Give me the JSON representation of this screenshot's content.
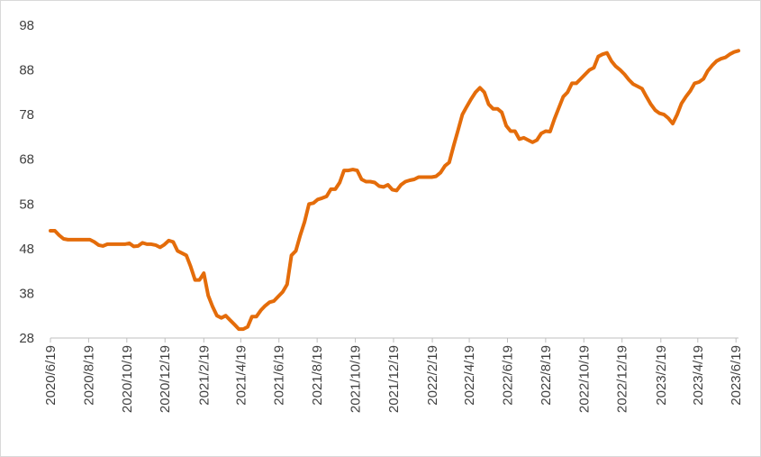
{
  "chart_data": {
    "type": "line",
    "title": "",
    "xlabel": "",
    "ylabel": "",
    "ylim": [
      28,
      98
    ],
    "yticks": [
      28,
      38,
      48,
      58,
      68,
      78,
      88,
      98
    ],
    "xticks": [
      "2020/6/19",
      "2020/8/19",
      "2020/10/19",
      "2020/12/19",
      "2021/2/19",
      "2021/4/19",
      "2021/6/19",
      "2021/8/19",
      "2021/10/19",
      "2021/12/19",
      "2022/2/19",
      "2022/4/19",
      "2022/6/19",
      "2022/8/19",
      "2022/10/19",
      "2022/12/19",
      "2023/2/19",
      "2023/4/19",
      "2023/6/19"
    ],
    "grid": false,
    "legend": "none",
    "series": [
      {
        "color": "#E46C0A",
        "points": [
          [
            "2020/6/19",
            52
          ],
          [
            "2020/6/26",
            52
          ],
          [
            "2020/7/3",
            51
          ],
          [
            "2020/7/10",
            50.2
          ],
          [
            "2020/7/17",
            50
          ],
          [
            "2020/7/24",
            50
          ],
          [
            "2020/7/31",
            50
          ],
          [
            "2020/8/7",
            50
          ],
          [
            "2020/8/14",
            50
          ],
          [
            "2020/8/21",
            50
          ],
          [
            "2020/8/28",
            49.5
          ],
          [
            "2020/9/4",
            48.8
          ],
          [
            "2020/9/11",
            48.6
          ],
          [
            "2020/9/18",
            49
          ],
          [
            "2020/9/25",
            49
          ],
          [
            "2020/10/2",
            49
          ],
          [
            "2020/10/9",
            49
          ],
          [
            "2020/10/16",
            49
          ],
          [
            "2020/10/23",
            49.2
          ],
          [
            "2020/10/30",
            48.5
          ],
          [
            "2020/11/6",
            48.6
          ],
          [
            "2020/11/13",
            49.3
          ],
          [
            "2020/11/20",
            49
          ],
          [
            "2020/11/27",
            49
          ],
          [
            "2020/12/4",
            48.8
          ],
          [
            "2020/12/11",
            48.3
          ],
          [
            "2020/12/18",
            48.9
          ],
          [
            "2020/12/25",
            49.8
          ],
          [
            "2021/1/1",
            49.5
          ],
          [
            "2021/1/8",
            47.5
          ],
          [
            "2021/1/15",
            47
          ],
          [
            "2021/1/22",
            46.5
          ],
          [
            "2021/1/29",
            44
          ],
          [
            "2021/2/5",
            41
          ],
          [
            "2021/2/12",
            41
          ],
          [
            "2021/2/19",
            42.5
          ],
          [
            "2021/2/26",
            37.5
          ],
          [
            "2021/3/5",
            35
          ],
          [
            "2021/3/12",
            33
          ],
          [
            "2021/3/19",
            32.5
          ],
          [
            "2021/3/26",
            33
          ],
          [
            "2021/4/2",
            32
          ],
          [
            "2021/4/9",
            31
          ],
          [
            "2021/4/16",
            30
          ],
          [
            "2021/4/23",
            30
          ],
          [
            "2021/4/30",
            30.5
          ],
          [
            "2021/5/7",
            32.8
          ],
          [
            "2021/5/14",
            32.8
          ],
          [
            "2021/5/21",
            34.2
          ],
          [
            "2021/5/28",
            35.2
          ],
          [
            "2021/6/4",
            36
          ],
          [
            "2021/6/11",
            36.3
          ],
          [
            "2021/6/18",
            37.3
          ],
          [
            "2021/6/25",
            38.3
          ],
          [
            "2021/7/2",
            40
          ],
          [
            "2021/7/9",
            46.5
          ],
          [
            "2021/7/16",
            47.5
          ],
          [
            "2021/7/23",
            51
          ],
          [
            "2021/7/30",
            54
          ],
          [
            "2021/8/6",
            58
          ],
          [
            "2021/8/13",
            58.2
          ],
          [
            "2021/8/20",
            59
          ],
          [
            "2021/8/27",
            59.3
          ],
          [
            "2021/9/3",
            59.7
          ],
          [
            "2021/9/10",
            61.3
          ],
          [
            "2021/9/17",
            61.3
          ],
          [
            "2021/9/24",
            62.8
          ],
          [
            "2021/10/1",
            65.5
          ],
          [
            "2021/10/8",
            65.5
          ],
          [
            "2021/10/15",
            65.7
          ],
          [
            "2021/10/22",
            65.5
          ],
          [
            "2021/10/29",
            63.5
          ],
          [
            "2021/11/5",
            63
          ],
          [
            "2021/11/12",
            63
          ],
          [
            "2021/11/19",
            62.8
          ],
          [
            "2021/11/26",
            62
          ],
          [
            "2021/12/3",
            61.8
          ],
          [
            "2021/12/10",
            62.3
          ],
          [
            "2021/12/17",
            61.2
          ],
          [
            "2021/12/24",
            61
          ],
          [
            "2021/12/31",
            62.3
          ],
          [
            "2022/1/7",
            63
          ],
          [
            "2022/1/14",
            63.3
          ],
          [
            "2022/1/21",
            63.5
          ],
          [
            "2022/1/28",
            64
          ],
          [
            "2022/2/4",
            64
          ],
          [
            "2022/2/11",
            64
          ],
          [
            "2022/2/18",
            64
          ],
          [
            "2022/2/25",
            64.2
          ],
          [
            "2022/3/4",
            65
          ],
          [
            "2022/3/11",
            66.5
          ],
          [
            "2022/3/18",
            67.3
          ],
          [
            "2022/3/25",
            71
          ],
          [
            "2022/4/1",
            74.5
          ],
          [
            "2022/4/8",
            78
          ],
          [
            "2022/4/15",
            79.8
          ],
          [
            "2022/4/22",
            81.5
          ],
          [
            "2022/4/29",
            83
          ],
          [
            "2022/5/6",
            84
          ],
          [
            "2022/5/13",
            83
          ],
          [
            "2022/5/20",
            80.3
          ],
          [
            "2022/5/27",
            79.3
          ],
          [
            "2022/6/3",
            79.3
          ],
          [
            "2022/6/10",
            78.5
          ],
          [
            "2022/6/17",
            75.5
          ],
          [
            "2022/6/24",
            74.3
          ],
          [
            "2022/7/1",
            74.3
          ],
          [
            "2022/7/8",
            72.5
          ],
          [
            "2022/7/15",
            72.8
          ],
          [
            "2022/7/22",
            72.3
          ],
          [
            "2022/7/29",
            71.8
          ],
          [
            "2022/8/5",
            72.3
          ],
          [
            "2022/8/12",
            73.8
          ],
          [
            "2022/8/19",
            74.3
          ],
          [
            "2022/8/26",
            74.2
          ],
          [
            "2022/9/2",
            77
          ],
          [
            "2022/9/9",
            79.5
          ],
          [
            "2022/9/16",
            82
          ],
          [
            "2022/9/23",
            83
          ],
          [
            "2022/9/30",
            85
          ],
          [
            "2022/10/7",
            85
          ],
          [
            "2022/10/14",
            86
          ],
          [
            "2022/10/21",
            87
          ],
          [
            "2022/10/28",
            88
          ],
          [
            "2022/11/4",
            88.5
          ],
          [
            "2022/11/11",
            91
          ],
          [
            "2022/11/18",
            91.5
          ],
          [
            "2022/11/25",
            91.8
          ],
          [
            "2022/12/2",
            90
          ],
          [
            "2022/12/9",
            88.8
          ],
          [
            "2022/12/16",
            88
          ],
          [
            "2022/12/23",
            87
          ],
          [
            "2022/12/30",
            85.8
          ],
          [
            "2023/1/6",
            84.8
          ],
          [
            "2023/1/13",
            84.3
          ],
          [
            "2023/1/20",
            83.8
          ],
          [
            "2023/1/27",
            82
          ],
          [
            "2023/2/3",
            80.3
          ],
          [
            "2023/2/10",
            79
          ],
          [
            "2023/2/17",
            78.3
          ],
          [
            "2023/2/24",
            78
          ],
          [
            "2023/3/3",
            77.2
          ],
          [
            "2023/3/10",
            76
          ],
          [
            "2023/3/17",
            78
          ],
          [
            "2023/3/24",
            80.5
          ],
          [
            "2023/3/31",
            82
          ],
          [
            "2023/4/7",
            83.3
          ],
          [
            "2023/4/14",
            85
          ],
          [
            "2023/4/21",
            85.3
          ],
          [
            "2023/4/28",
            86
          ],
          [
            "2023/5/5",
            87.8
          ],
          [
            "2023/5/12",
            89
          ],
          [
            "2023/5/19",
            90
          ],
          [
            "2023/5/26",
            90.5
          ],
          [
            "2023/6/2",
            90.8
          ],
          [
            "2023/6/9",
            91.5
          ],
          [
            "2023/6/16",
            92
          ],
          [
            "2023/6/23",
            92.3
          ]
        ]
      }
    ]
  }
}
